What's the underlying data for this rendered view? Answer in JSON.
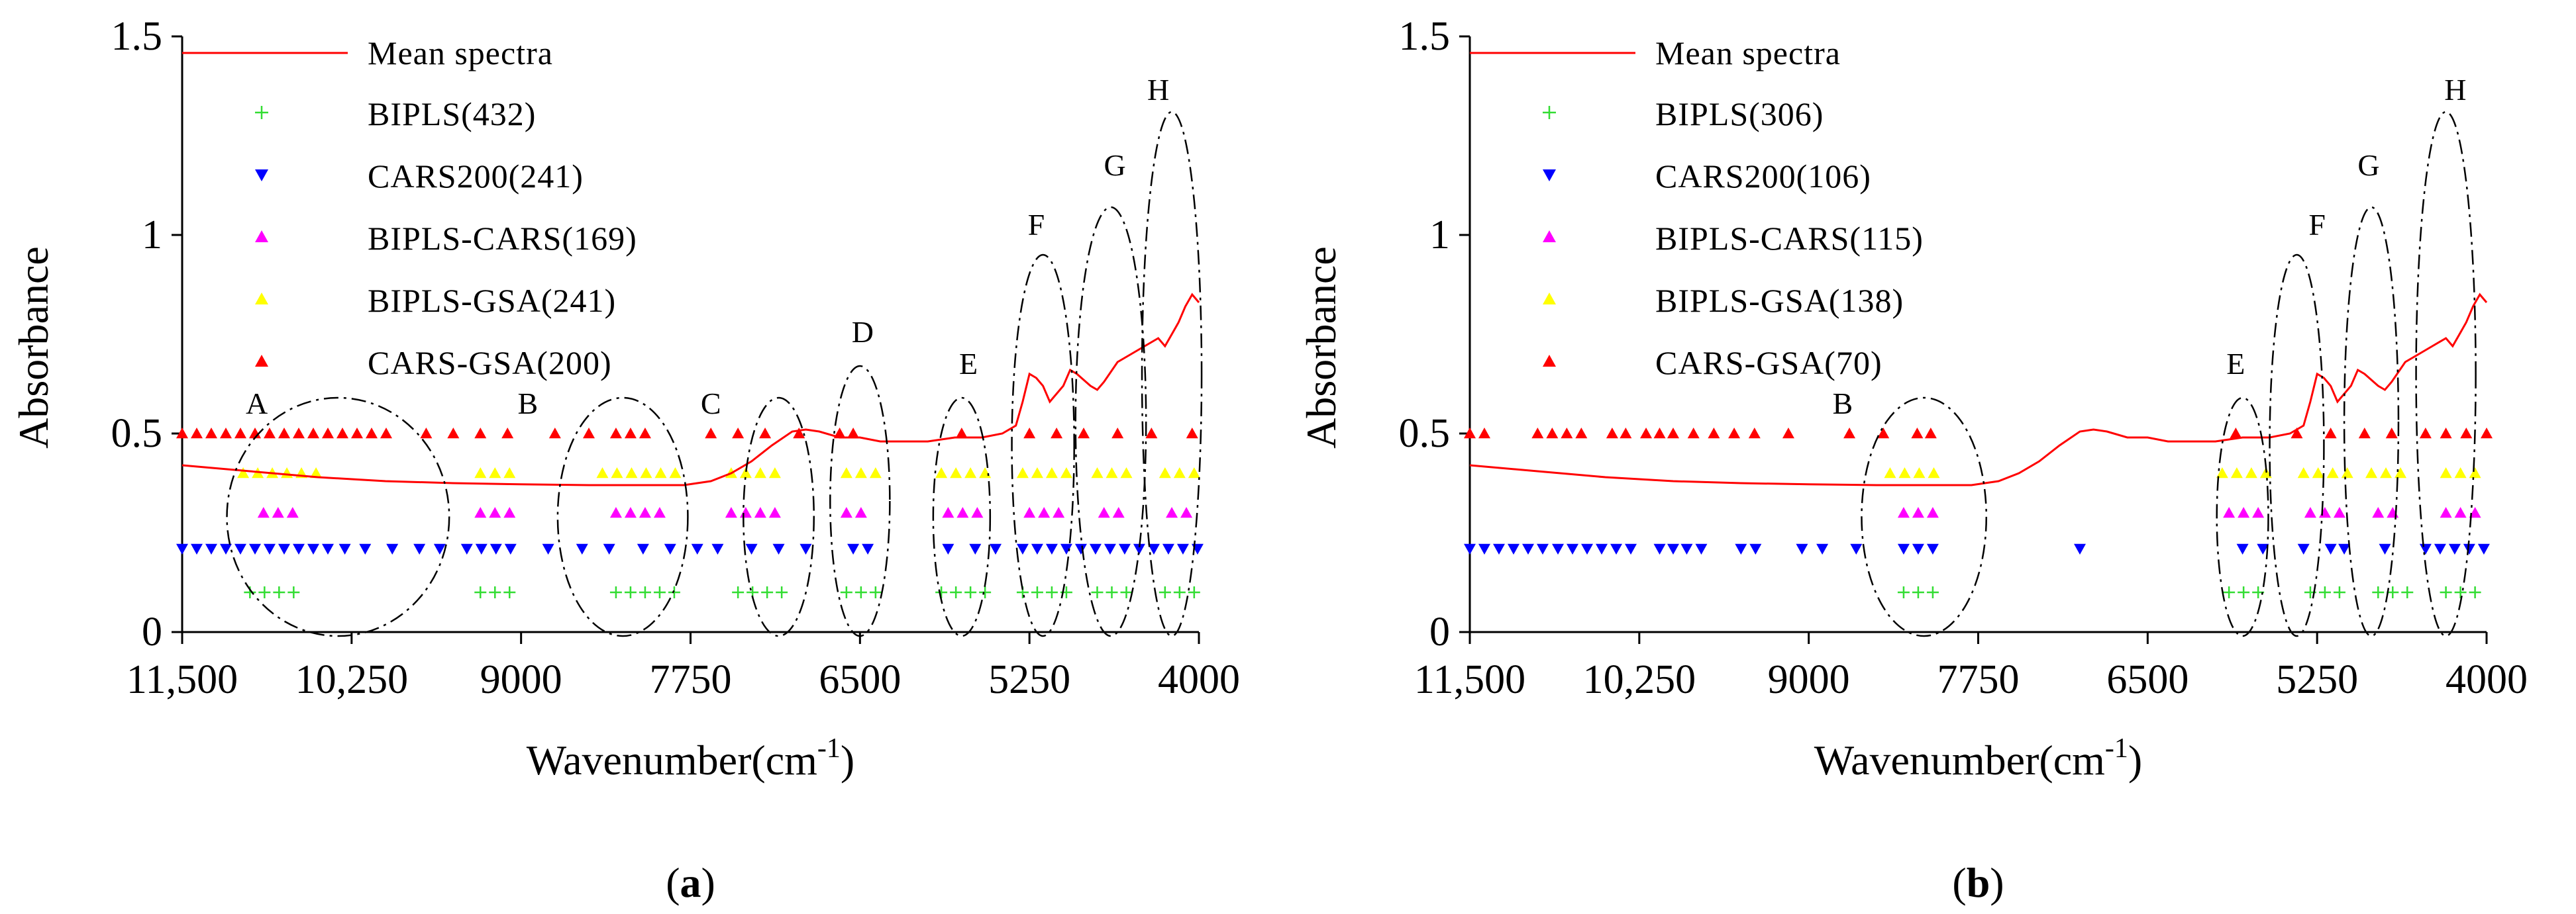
{
  "chart_data": [
    {
      "type": "line",
      "panel_label": "a",
      "xlabel": "Wavenumber(cm",
      "xlabel_sup": "-1",
      "xlabel_close": ")",
      "ylabel": "Absorbance",
      "xlim": [
        11500,
        4000
      ],
      "ylim": [
        0,
        1.5
      ],
      "x_ticks": [
        11500,
        10250,
        9000,
        7750,
        6500,
        5250,
        4000
      ],
      "x_tick_labels": [
        "11,500",
        "10,250",
        "9000",
        "7750",
        "6500",
        "5250",
        "4000"
      ],
      "y_ticks": [
        0,
        0.5,
        1,
        1.5
      ],
      "y_tick_labels": [
        "0",
        "0.5",
        "1",
        "1.5"
      ],
      "line": {
        "name": "Mean spectra",
        "color": "#ff0000",
        "x": [
          11500,
          11000,
          10500,
          10000,
          9500,
          9000,
          8500,
          8000,
          7800,
          7600,
          7450,
          7300,
          7150,
          7000,
          6900,
          6800,
          6650,
          6500,
          6350,
          6200,
          6000,
          5800,
          5600,
          5450,
          5350,
          5300,
          5250,
          5200,
          5150,
          5100,
          5000,
          4950,
          4900,
          4800,
          4750,
          4700,
          4600,
          4500,
          4400,
          4300,
          4250,
          4200,
          4150,
          4100,
          4050,
          4000
        ],
        "y": [
          0.42,
          0.405,
          0.39,
          0.38,
          0.375,
          0.372,
          0.37,
          0.37,
          0.37,
          0.38,
          0.4,
          0.43,
          0.47,
          0.505,
          0.51,
          0.505,
          0.49,
          0.49,
          0.48,
          0.48,
          0.48,
          0.49,
          0.49,
          0.5,
          0.52,
          0.58,
          0.65,
          0.64,
          0.62,
          0.58,
          0.62,
          0.66,
          0.65,
          0.62,
          0.61,
          0.63,
          0.68,
          0.7,
          0.72,
          0.74,
          0.72,
          0.75,
          0.78,
          0.82,
          0.85,
          0.83
        ]
      },
      "series": [
        {
          "name": "BIPLS(432)",
          "marker": "plus",
          "color": "#33dd33",
          "level": 0.1,
          "ranges": [
            [
              11000,
              10600
            ],
            [
              9300,
              9000
            ],
            [
              8300,
              7800
            ],
            [
              7400,
              7000
            ],
            [
              6600,
              6350
            ],
            [
              5900,
              5550
            ],
            [
              5300,
              4950
            ],
            [
              4750,
              4450
            ],
            [
              4250,
              4000
            ]
          ],
          "points": []
        },
        {
          "name": "CARS200(241)",
          "marker": "tri-down",
          "color": "#0000ff",
          "level": 0.21,
          "ranges": [
            [
              11500,
              10400
            ],
            [
              9400,
              9000
            ],
            [
              7300,
              7200
            ],
            [
              6550,
              6350
            ],
            [
              5300,
              4000
            ]
          ],
          "points": [
            10300,
            10150,
            9950,
            9750,
            9600,
            8800,
            8550,
            8350,
            8100,
            7900,
            7700,
            7550,
            7100,
            6900,
            5850,
            5650,
            5500
          ]
        },
        {
          "name": "BIPLS-CARS(169)",
          "marker": "tri-up",
          "color": "#ff00ff",
          "level": 0.3,
          "ranges": [
            [
              10900,
              10650
            ],
            [
              9300,
              9050
            ],
            [
              8300,
              7950
            ],
            [
              7450,
              7050
            ],
            [
              6600,
              6400
            ],
            [
              5850,
              5600
            ],
            [
              5250,
              5000
            ],
            [
              4700,
              4500
            ],
            [
              4200,
              4000
            ]
          ],
          "points": []
        },
        {
          "name": "BIPLS-GSA(241)",
          "marker": "tri-up",
          "color": "#ffff00",
          "level": 0.4,
          "ranges": [
            [
              11050,
              10450
            ],
            [
              9300,
              9000
            ],
            [
              8400,
              7850
            ],
            [
              7450,
              7050
            ],
            [
              6600,
              6350
            ],
            [
              5900,
              5550
            ],
            [
              5300,
              4950
            ],
            [
              4750,
              4450
            ],
            [
              4250,
              4000
            ]
          ],
          "points": []
        },
        {
          "name": "CARS-GSA(200)",
          "marker": "tri-up",
          "color": "#ff0000",
          "level": 0.5,
          "ranges": [
            [
              11500,
              9900
            ],
            [
              8300,
              8050
            ]
          ],
          "points": [
            9700,
            9500,
            9300,
            9100,
            8750,
            8500,
            7600,
            7400,
            7200,
            6950,
            6650,
            6550,
            5750,
            5250,
            5050,
            4850,
            4600,
            4350,
            4050
          ]
        }
      ],
      "regions": [
        {
          "label": "A",
          "cx": 10350,
          "cy": 0.29,
          "rx": 820,
          "ry": 0.3,
          "lx": 10950,
          "ly": 0.55
        },
        {
          "label": "B",
          "cx": 8250,
          "cy": 0.29,
          "rx": 480,
          "ry": 0.3,
          "lx": 8950,
          "ly": 0.55
        },
        {
          "label": "C",
          "cx": 7100,
          "cy": 0.29,
          "rx": 260,
          "ry": 0.3,
          "lx": 7600,
          "ly": 0.55
        },
        {
          "label": "D",
          "cx": 6500,
          "cy": 0.33,
          "rx": 220,
          "ry": 0.34,
          "lx": 6480,
          "ly": 0.73
        },
        {
          "label": "E",
          "cx": 5750,
          "cy": 0.29,
          "rx": 210,
          "ry": 0.3,
          "lx": 5700,
          "ly": 0.65
        },
        {
          "label": "F",
          "cx": 5150,
          "cy": 0.47,
          "rx": 230,
          "ry": 0.48,
          "lx": 5200,
          "ly": 1.0
        },
        {
          "label": "G",
          "cx": 4650,
          "cy": 0.53,
          "rx": 260,
          "ry": 0.54,
          "lx": 4620,
          "ly": 1.15
        },
        {
          "label": "H",
          "cx": 4200,
          "cy": 0.65,
          "rx": 220,
          "ry": 0.66,
          "lx": 4300,
          "ly": 1.34
        }
      ]
    },
    {
      "type": "line",
      "panel_label": "b",
      "xlabel": "Wavenumber(cm",
      "xlabel_sup": "-1",
      "xlabel_close": ")",
      "ylabel": "Absorbance",
      "xlim": [
        11500,
        4000
      ],
      "ylim": [
        0,
        1.5
      ],
      "x_ticks": [
        11500,
        10250,
        9000,
        7750,
        6500,
        5250,
        4000
      ],
      "x_tick_labels": [
        "11,500",
        "10,250",
        "9000",
        "7750",
        "6500",
        "5250",
        "4000"
      ],
      "y_ticks": [
        0,
        0.5,
        1,
        1.5
      ],
      "y_tick_labels": [
        "0",
        "0.5",
        "1",
        "1.5"
      ],
      "line": {
        "name": "Mean spectra",
        "color": "#ff0000",
        "x": [
          11500,
          11000,
          10500,
          10000,
          9500,
          9000,
          8500,
          8000,
          7800,
          7600,
          7450,
          7300,
          7150,
          7000,
          6900,
          6800,
          6650,
          6500,
          6350,
          6200,
          6000,
          5800,
          5600,
          5450,
          5350,
          5300,
          5250,
          5200,
          5150,
          5100,
          5000,
          4950,
          4900,
          4800,
          4750,
          4700,
          4600,
          4500,
          4400,
          4300,
          4250,
          4200,
          4150,
          4100,
          4050,
          4000
        ],
        "y": [
          0.42,
          0.405,
          0.39,
          0.38,
          0.375,
          0.372,
          0.37,
          0.37,
          0.37,
          0.38,
          0.4,
          0.43,
          0.47,
          0.505,
          0.51,
          0.505,
          0.49,
          0.49,
          0.48,
          0.48,
          0.48,
          0.49,
          0.49,
          0.5,
          0.52,
          0.58,
          0.65,
          0.64,
          0.62,
          0.58,
          0.62,
          0.66,
          0.65,
          0.62,
          0.61,
          0.63,
          0.68,
          0.7,
          0.72,
          0.74,
          0.72,
          0.75,
          0.78,
          0.82,
          0.85,
          0.83
        ]
      },
      "series": [
        {
          "name": "BIPLS(306)",
          "marker": "plus",
          "color": "#33dd33",
          "level": 0.1,
          "ranges": [
            [
              8300,
              8000
            ],
            [
              5900,
              5600
            ],
            [
              5300,
              5000
            ],
            [
              4800,
              4550
            ],
            [
              4300,
              4000
            ]
          ],
          "points": []
        },
        {
          "name": "CARS200(106)",
          "marker": "tri-down",
          "color": "#0000ff",
          "level": 0.21,
          "ranges": [
            [
              11500,
              10950
            ],
            [
              10850,
              10300
            ],
            [
              9900,
              9750
            ],
            [
              9500,
              9350
            ],
            [
              8300,
              8000
            ],
            [
              5350,
              5250
            ],
            [
              4750,
              4650
            ],
            [
              4450,
              4000
            ]
          ],
          "points": [
            10100,
            10000,
            9050,
            8900,
            8650,
            7000,
            5800,
            5650,
            5150,
            5050
          ]
        },
        {
          "name": "BIPLS-CARS(115)",
          "marker": "tri-up",
          "color": "#ff00ff",
          "level": 0.3,
          "ranges": [
            [
              8300,
              8050
            ],
            [
              5900,
              5650
            ],
            [
              5300,
              5050
            ],
            [
              4800,
              4600
            ],
            [
              4300,
              4050
            ]
          ],
          "points": []
        },
        {
          "name": "BIPLS-GSA(138)",
          "marker": "tri-up",
          "color": "#ffff00",
          "level": 0.4,
          "ranges": [
            [
              8400,
              8000
            ],
            [
              5950,
              5600
            ],
            [
              5350,
              5000
            ],
            [
              4850,
              4550
            ],
            [
              4300,
              4000
            ]
          ],
          "points": []
        },
        {
          "name": "CARS-GSA(70)",
          "marker": "tri-up",
          "color": "#ff0000",
          "level": 0.5,
          "ranges": [
            [
              11500,
              11300
            ],
            [
              11000,
              10600
            ]
          ],
          "points": [
            10450,
            10350,
            10200,
            10100,
            10000,
            9850,
            9700,
            9550,
            9400,
            9150,
            8700,
            8450,
            8200,
            8100,
            5850,
            5400,
            5150,
            4900,
            4700,
            4450,
            4300,
            4150,
            4000
          ]
        }
      ],
      "regions": [
        {
          "label": "B",
          "cx": 8150,
          "cy": 0.29,
          "rx": 460,
          "ry": 0.3,
          "lx": 8750,
          "ly": 0.55
        },
        {
          "label": "E",
          "cx": 5800,
          "cy": 0.29,
          "rx": 190,
          "ry": 0.3,
          "lx": 5850,
          "ly": 0.65
        },
        {
          "label": "F",
          "cx": 5400,
          "cy": 0.47,
          "rx": 200,
          "ry": 0.48,
          "lx": 5250,
          "ly": 1.0
        },
        {
          "label": "G",
          "cx": 4850,
          "cy": 0.53,
          "rx": 200,
          "ry": 0.54,
          "lx": 4870,
          "ly": 1.15
        },
        {
          "label": "H",
          "cx": 4300,
          "cy": 0.65,
          "rx": 220,
          "ry": 0.66,
          "lx": 4230,
          "ly": 1.34
        }
      ]
    }
  ]
}
